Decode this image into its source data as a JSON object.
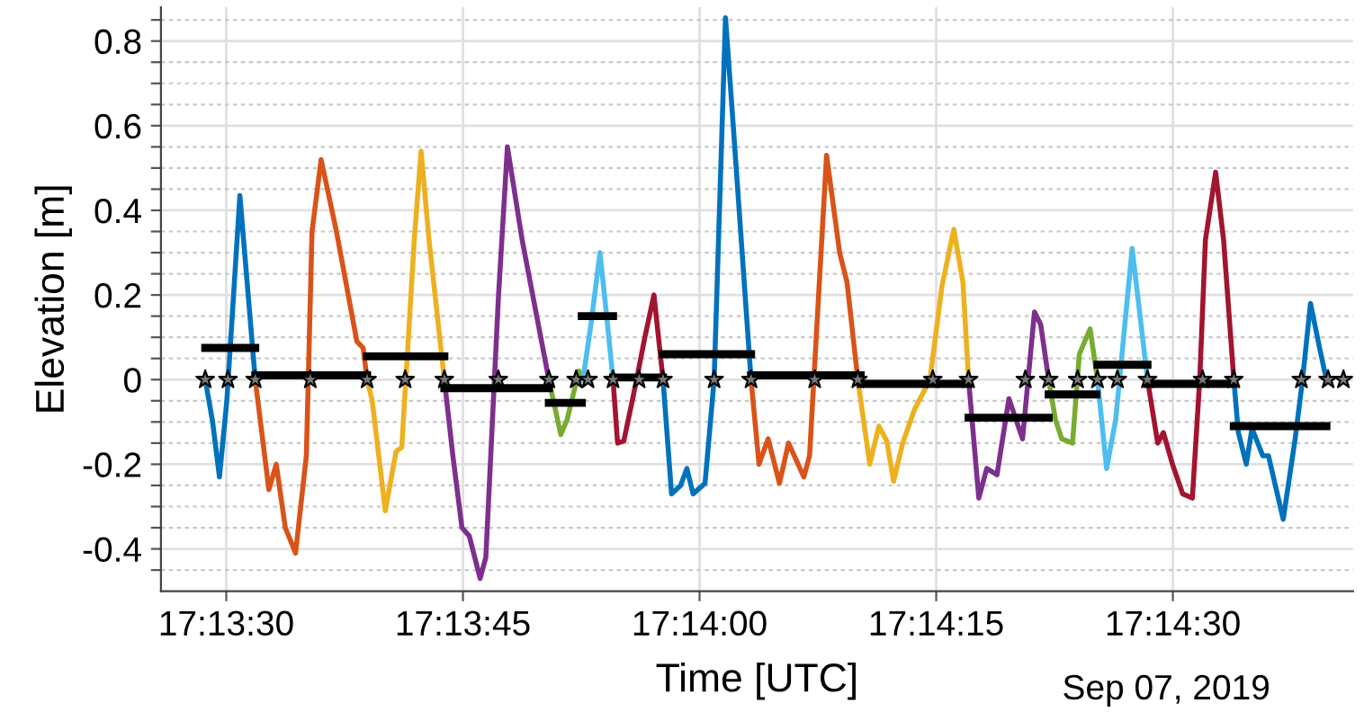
{
  "chart_data": {
    "type": "line",
    "xlabel": "Time [UTC]",
    "ylabel": "Elevation [m]",
    "annotations": [
      "Sep 07, 2019"
    ],
    "xlim": [
      17.22385,
      17.24484
    ],
    "ylim": [
      -0.5,
      0.88
    ],
    "xticks": [
      {
        "value": 17.225,
        "label": "17:13:30"
      },
      {
        "value": 17.229167,
        "label": "17:13:45"
      },
      {
        "value": 17.233333,
        "label": "17:14:00"
      },
      {
        "value": 17.2375,
        "label": "17:14:15"
      },
      {
        "value": 17.241667,
        "label": "17:14:30"
      }
    ],
    "yticks": [
      {
        "value": -0.45,
        "label": null
      },
      -0.4,
      {
        "value": -0.35,
        "label": null
      },
      {
        "value": -0.3,
        "label": null
      },
      {
        "value": -0.25,
        "label": null
      },
      -0.2,
      {
        "value": -0.15,
        "label": null
      },
      {
        "value": -0.1,
        "label": null
      },
      {
        "value": -0.05,
        "label": null
      },
      0,
      {
        "value": 0.05,
        "label": null
      },
      {
        "value": 0.1,
        "label": null
      },
      {
        "value": 0.15,
        "label": null
      },
      0.2,
      {
        "value": 0.25,
        "label": null
      },
      {
        "value": 0.3,
        "label": null
      },
      {
        "value": 0.35,
        "label": null
      },
      0.4,
      {
        "value": 0.45,
        "label": null
      },
      {
        "value": 0.5,
        "label": null
      },
      {
        "value": 0.55,
        "label": null
      },
      0.6,
      {
        "value": 0.65,
        "label": null
      },
      {
        "value": 0.7,
        "label": null
      },
      {
        "value": 0.75,
        "label": null
      },
      0.8,
      {
        "value": 0.85,
        "label": null
      }
    ],
    "grid": true,
    "legend": false,
    "series": [
      {
        "color": "#0072bd",
        "x": [
          17.22463,
          17.22476,
          17.22488,
          17.22501,
          17.22524,
          17.22551
        ],
        "values": [
          0,
          -0.1,
          -0.23,
          -0.05,
          0.435,
          0
        ]
      },
      {
        "color": "#d95319",
        "x": [
          17.22551,
          17.22575,
          17.22588,
          17.22604,
          17.22622,
          17.22641,
          17.22651,
          17.22667,
          17.22694,
          17.2273,
          17.22741,
          17.22748
        ],
        "values": [
          0,
          -0.26,
          -0.2,
          -0.35,
          -0.41,
          -0.18,
          0.35,
          0.52,
          0.35,
          0.09,
          0.075,
          0
        ]
      },
      {
        "color": "#edb120",
        "x": [
          17.22748,
          17.22757,
          17.2278,
          17.22799,
          17.22809,
          17.22831,
          17.22843,
          17.22857,
          17.22884
        ],
        "values": [
          0,
          -0.05,
          -0.31,
          -0.17,
          -0.16,
          0.33,
          0.54,
          0.33,
          0
        ]
      },
      {
        "color": "#7e2f8e",
        "x": [
          17.22884,
          17.22899,
          17.22915,
          17.22928,
          17.22947,
          17.22957,
          17.22979,
          17.22995,
          17.23021,
          17.23068
        ],
        "values": [
          0,
          -0.18,
          -0.35,
          -0.37,
          -0.47,
          -0.42,
          0.19,
          0.55,
          0.33,
          0
        ]
      },
      {
        "color": "#77ac30",
        "x": [
          17.23068,
          17.23089,
          17.231,
          17.23121,
          17.23128
        ],
        "values": [
          0,
          -0.13,
          -0.095,
          0.02,
          0
        ]
      },
      {
        "color": "#4dbeee",
        "x": [
          17.23128,
          17.23142,
          17.23158,
          17.23169,
          17.23181
        ],
        "values": [
          0,
          0.13,
          0.3,
          0.16,
          0
        ]
      },
      {
        "color": "#a2142f",
        "x": [
          17.23181,
          17.23189,
          17.232,
          17.23221,
          17.23237,
          17.23253,
          17.23269
        ],
        "values": [
          0,
          -0.15,
          -0.145,
          -0.01,
          0.1,
          0.2,
          0
        ]
      },
      {
        "color": "#0072bd",
        "x": [
          17.23269,
          17.23284,
          17.233,
          17.23311,
          17.23322,
          17.23343,
          17.23359,
          17.23379,
          17.2339,
          17.23424
        ],
        "values": [
          0,
          -0.27,
          -0.25,
          -0.21,
          -0.27,
          -0.245,
          0,
          0.855,
          0.65,
          0
        ]
      },
      {
        "color": "#d95319",
        "x": [
          17.23424,
          17.23438,
          17.23454,
          17.23474,
          17.2349,
          17.23517,
          17.23527,
          17.2354,
          17.23557,
          17.2358,
          17.23593,
          17.23612
        ],
        "values": [
          0,
          -0.2,
          -0.14,
          -0.245,
          -0.15,
          -0.23,
          -0.18,
          0.13,
          0.53,
          0.3,
          0.23,
          0
        ]
      },
      {
        "color": "#edb120",
        "x": [
          17.23612,
          17.23633,
          17.23649,
          17.23663,
          17.23675,
          17.23691,
          17.23712,
          17.23739,
          17.2376,
          17.23781,
          17.23797,
          17.23807
        ],
        "values": [
          0,
          -0.2,
          -0.11,
          -0.145,
          -0.24,
          -0.15,
          -0.07,
          0,
          0.22,
          0.355,
          0.23,
          0
        ]
      },
      {
        "color": "#7e2f8e",
        "x": [
          17.23807,
          17.23825,
          17.23839,
          17.23857,
          17.23878,
          17.23902,
          17.23923,
          17.23934,
          17.23948
        ],
        "values": [
          0,
          -0.28,
          -0.21,
          -0.225,
          -0.045,
          -0.14,
          0.16,
          0.13,
          0
        ]
      },
      {
        "color": "#77ac30",
        "x": [
          17.23948,
          17.2396,
          17.23971,
          17.2399,
          17.24002,
          17.24021,
          17.24034
        ],
        "values": [
          0,
          -0.095,
          -0.14,
          -0.15,
          0.06,
          0.12,
          0
        ]
      },
      {
        "color": "#4dbeee",
        "x": [
          17.24034,
          17.2405,
          17.24066,
          17.24095,
          17.24122
        ],
        "values": [
          0,
          -0.21,
          -0.095,
          0.31,
          0
        ]
      },
      {
        "color": "#a2142f",
        "x": [
          17.24122,
          17.2414,
          17.2415,
          17.24166,
          17.24184,
          17.24201,
          17.24214,
          17.24224,
          17.24242,
          17.24256,
          17.24274
        ],
        "values": [
          0,
          -0.15,
          -0.125,
          -0.2,
          -0.27,
          -0.28,
          0,
          0.33,
          0.49,
          0.33,
          0
        ]
      },
      {
        "color": "#0072bd",
        "x": [
          17.24274,
          17.24282,
          17.24296,
          17.24306,
          17.24325,
          17.24335,
          17.24361,
          17.24382,
          17.24395,
          17.24409,
          17.24425,
          17.24437
        ],
        "values": [
          0,
          -0.125,
          -0.2,
          -0.115,
          -0.18,
          -0.18,
          -0.33,
          -0.14,
          0,
          0.18,
          0.075,
          0
        ]
      },
      {
        "color": "#000000",
        "x": [
          17.22463,
          17.22551
        ],
        "values": [
          0.075,
          0.075
        ]
      },
      {
        "color": "#000000",
        "x": [
          17.22551,
          17.22748
        ],
        "values": [
          0.01,
          0.01
        ]
      },
      {
        "color": "#000000",
        "x": [
          17.22748,
          17.22884
        ],
        "values": [
          0.055,
          0.055
        ]
      },
      {
        "color": "#000000",
        "x": [
          17.22884,
          17.23068
        ],
        "values": [
          -0.02,
          -0.02
        ]
      },
      {
        "color": "#000000",
        "x": [
          17.23068,
          17.23126
        ],
        "values": [
          -0.055,
          -0.055
        ]
      },
      {
        "color": "#000000",
        "x": [
          17.23126,
          17.23181
        ],
        "values": [
          0.15,
          0.15
        ]
      },
      {
        "color": "#000000",
        "x": [
          17.23181,
          17.23269
        ],
        "values": [
          0.005,
          0.005
        ]
      },
      {
        "color": "#000000",
        "x": [
          17.23269,
          17.23424
        ],
        "values": [
          0.06,
          0.06
        ]
      },
      {
        "color": "#000000",
        "x": [
          17.23424,
          17.23617
        ],
        "values": [
          0.01,
          0.01
        ]
      },
      {
        "color": "#000000",
        "x": [
          17.23617,
          17.23807
        ],
        "values": [
          -0.01,
          -0.01
        ]
      },
      {
        "color": "#000000",
        "x": [
          17.23807,
          17.23948
        ],
        "values": [
          -0.09,
          -0.09
        ]
      },
      {
        "color": "#000000",
        "x": [
          17.23948,
          17.24032
        ],
        "values": [
          -0.035,
          -0.035
        ]
      },
      {
        "color": "#000000",
        "x": [
          17.24034,
          17.24122
        ],
        "values": [
          0.035,
          0.035
        ]
      },
      {
        "color": "#000000",
        "x": [
          17.24122,
          17.24274
        ],
        "values": [
          -0.01,
          -0.01
        ]
      },
      {
        "color": "#000000",
        "x": [
          17.24274,
          17.24437
        ],
        "values": [
          -0.11,
          -0.11
        ]
      },
      {
        "type": "scatter",
        "marker": "star",
        "color": "#000000",
        "x": [
          17.22463,
          17.22503,
          17.22551,
          17.22648,
          17.22748,
          17.22815,
          17.22884,
          17.22979,
          17.23068,
          17.23116,
          17.23137,
          17.23181,
          17.23227,
          17.23269,
          17.23359,
          17.23424,
          17.23536,
          17.23612,
          17.23744,
          17.23807,
          17.23907,
          17.23948,
          17.23999,
          17.24034,
          17.24069,
          17.24122,
          17.24219,
          17.24274,
          17.24393,
          17.2444,
          17.24467
        ],
        "values": [
          0,
          0,
          0,
          0,
          0,
          0,
          0,
          0,
          0,
          0,
          0,
          0,
          0,
          0,
          0,
          0,
          0,
          0,
          0,
          0,
          0,
          0,
          0,
          0,
          0,
          0,
          0,
          0,
          0,
          0,
          0
        ]
      }
    ]
  }
}
